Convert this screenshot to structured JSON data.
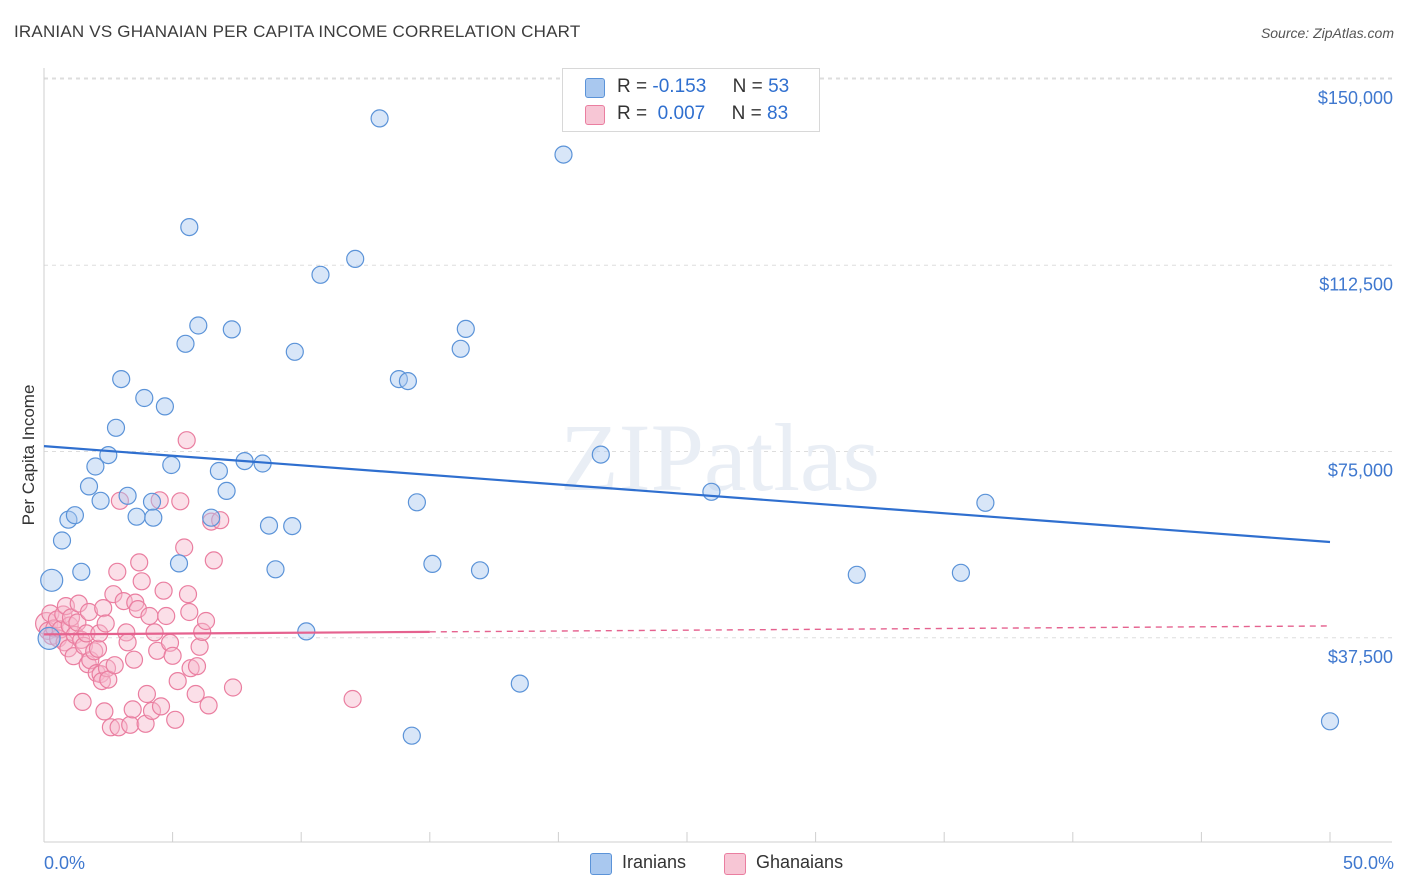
{
  "title": "IRANIAN VS GHANAIAN PER CAPITA INCOME CORRELATION CHART",
  "source": "Source: ZipAtlas.com",
  "watermark": "ZIPatlas",
  "legend": {
    "rows": [
      {
        "r_label": "R =",
        "r_value": "-0.153",
        "n_label": "N =",
        "n_value": "53"
      },
      {
        "r_label": "R =",
        "r_value": "0.007",
        "n_label": "N =",
        "n_value": "83"
      }
    ]
  },
  "bottom_legend": [
    "Iranians",
    "Ghanaians"
  ],
  "colors": {
    "blue_fill": "#a9c8ef",
    "blue_stroke": "#5b93d8",
    "blue_line": "#2f6fcf",
    "pink_fill": "#f7b8cc",
    "pink_stroke": "#ea7ea0",
    "pink_line": "#e5628f",
    "axis_text": "#3f78cf",
    "grid": "#dddddd"
  },
  "chart_data": {
    "type": "scatter",
    "title": "IRANIAN VS GHANAIAN PER CAPITA INCOME CORRELATION CHART",
    "xlabel": "",
    "ylabel": "Per Capita Income",
    "xlim": [
      0,
      50
    ],
    "ylim": [
      0,
      155000
    ],
    "x_tick_labels": [
      "0.0%",
      "50.0%"
    ],
    "y_ticks": [
      37500,
      75000,
      112500,
      150000
    ],
    "y_tick_labels": [
      "$37,500",
      "$75,000",
      "$112,500",
      "$150,000"
    ],
    "series": [
      {
        "name": "Iranians",
        "r": -0.153,
        "n": 53,
        "trend": {
          "x": [
            0,
            50
          ],
          "y": [
            79700,
            60400
          ]
        },
        "points": [
          [
            0.2,
            41000
          ],
          [
            0.3,
            52700
          ],
          [
            0.7,
            60700
          ],
          [
            0.95,
            64900
          ],
          [
            1.2,
            65800
          ],
          [
            1.45,
            54400
          ],
          [
            1.75,
            71600
          ],
          [
            2.0,
            75600
          ],
          [
            2.2,
            68700
          ],
          [
            2.5,
            77900
          ],
          [
            2.8,
            83400
          ],
          [
            3.0,
            93200
          ],
          [
            3.25,
            69700
          ],
          [
            3.6,
            65500
          ],
          [
            3.9,
            89400
          ],
          [
            4.2,
            68500
          ],
          [
            4.25,
            65300
          ],
          [
            4.7,
            87700
          ],
          [
            4.95,
            75900
          ],
          [
            5.25,
            56100
          ],
          [
            5.5,
            100300
          ],
          [
            5.65,
            123800
          ],
          [
            6.0,
            104000
          ],
          [
            6.5,
            65300
          ],
          [
            6.8,
            74700
          ],
          [
            7.1,
            70700
          ],
          [
            7.3,
            103200
          ],
          [
            7.8,
            76700
          ],
          [
            8.5,
            76200
          ],
          [
            8.75,
            63700
          ],
          [
            9.0,
            54900
          ],
          [
            9.65,
            63600
          ],
          [
            9.75,
            98700
          ],
          [
            10.2,
            42400
          ],
          [
            10.75,
            114200
          ],
          [
            12.1,
            117400
          ],
          [
            13.05,
            145700
          ],
          [
            13.8,
            93200
          ],
          [
            14.15,
            92800
          ],
          [
            14.3,
            21400
          ],
          [
            14.5,
            68400
          ],
          [
            15.1,
            56000
          ],
          [
            16.2,
            99300
          ],
          [
            16.4,
            103300
          ],
          [
            16.95,
            54700
          ],
          [
            18.5,
            31900
          ],
          [
            20.2,
            138400
          ],
          [
            21.65,
            78000
          ],
          [
            25.95,
            70500
          ],
          [
            31.6,
            53800
          ],
          [
            35.65,
            54200
          ],
          [
            36.6,
            68300
          ],
          [
            50.0,
            24300
          ]
        ]
      },
      {
        "name": "Ghanaians",
        "r": 0.007,
        "n": 83,
        "trend": {
          "x": [
            0,
            50
          ],
          "y": [
            41800,
            43500
          ],
          "solid_until": 15
        },
        "points": [
          [
            0.1,
            44000
          ],
          [
            0.15,
            42500
          ],
          [
            0.25,
            46000
          ],
          [
            0.3,
            41500
          ],
          [
            0.4,
            43000
          ],
          [
            0.5,
            44800
          ],
          [
            0.55,
            41000
          ],
          [
            0.65,
            42800
          ],
          [
            0.75,
            45800
          ],
          [
            0.8,
            40200
          ],
          [
            0.85,
            47500
          ],
          [
            0.95,
            39000
          ],
          [
            1.0,
            43600
          ],
          [
            1.05,
            45200
          ],
          [
            1.15,
            37400
          ],
          [
            1.2,
            41700
          ],
          [
            1.3,
            44200
          ],
          [
            1.35,
            48000
          ],
          [
            1.45,
            40700
          ],
          [
            1.5,
            28200
          ],
          [
            1.55,
            39500
          ],
          [
            1.65,
            42000
          ],
          [
            1.7,
            35800
          ],
          [
            1.75,
            46300
          ],
          [
            1.8,
            36600
          ],
          [
            1.95,
            38400
          ],
          [
            2.05,
            34000
          ],
          [
            2.1,
            38900
          ],
          [
            2.15,
            42000
          ],
          [
            2.2,
            33800
          ],
          [
            2.25,
            32400
          ],
          [
            2.3,
            47100
          ],
          [
            2.35,
            26300
          ],
          [
            2.4,
            44000
          ],
          [
            2.45,
            35000
          ],
          [
            2.5,
            32700
          ],
          [
            2.6,
            23100
          ],
          [
            2.7,
            49900
          ],
          [
            2.75,
            35600
          ],
          [
            2.85,
            54400
          ],
          [
            2.9,
            23100
          ],
          [
            2.95,
            68700
          ],
          [
            3.1,
            48500
          ],
          [
            3.2,
            42200
          ],
          [
            3.25,
            40200
          ],
          [
            3.35,
            23600
          ],
          [
            3.45,
            26700
          ],
          [
            3.5,
            36700
          ],
          [
            3.55,
            48200
          ],
          [
            3.65,
            46900
          ],
          [
            3.7,
            56300
          ],
          [
            3.8,
            52500
          ],
          [
            3.95,
            23800
          ],
          [
            4.0,
            29800
          ],
          [
            4.1,
            45500
          ],
          [
            4.2,
            26400
          ],
          [
            4.3,
            42200
          ],
          [
            4.4,
            38500
          ],
          [
            4.5,
            68800
          ],
          [
            4.55,
            27300
          ],
          [
            4.65,
            50600
          ],
          [
            4.75,
            45500
          ],
          [
            4.9,
            40100
          ],
          [
            5.0,
            37500
          ],
          [
            5.1,
            24600
          ],
          [
            5.2,
            32400
          ],
          [
            5.3,
            68600
          ],
          [
            5.45,
            59300
          ],
          [
            5.55,
            80900
          ],
          [
            5.6,
            49900
          ],
          [
            5.65,
            46300
          ],
          [
            5.7,
            35000
          ],
          [
            5.9,
            29800
          ],
          [
            5.95,
            35400
          ],
          [
            6.05,
            39300
          ],
          [
            6.15,
            42300
          ],
          [
            6.3,
            44500
          ],
          [
            6.4,
            27500
          ],
          [
            6.5,
            64500
          ],
          [
            6.6,
            56700
          ],
          [
            6.85,
            64800
          ],
          [
            7.35,
            31100
          ],
          [
            12.0,
            28800
          ]
        ]
      }
    ]
  }
}
